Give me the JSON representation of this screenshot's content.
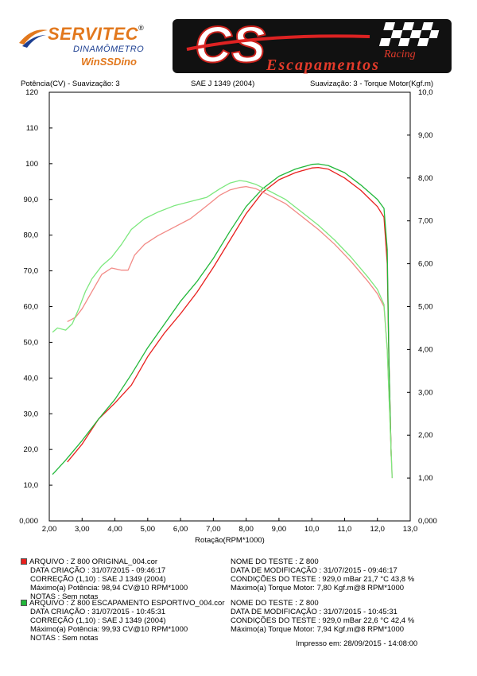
{
  "logos": {
    "servitec": {
      "brand": "SERVITEC",
      "reg": "®",
      "line1": "DINAMÔMETRO",
      "line2": "WinSSDino"
    },
    "cs": {
      "letters": "CS",
      "tagline": "Escapamentos",
      "script": "Racing"
    }
  },
  "header": {
    "left": "Potência(CV) - Suavização: 3",
    "center": "SAE J 1349 (2004)",
    "right": "Suavização: 3 - Torque Motor(Kgf.m)"
  },
  "colors": {
    "run1": "#e8201e",
    "run2": "#22b83a",
    "run1_light": "#f28a86",
    "run2_light": "#7de87e"
  },
  "chart_data": {
    "type": "line",
    "xlabel": "Rotação(RPM*1000)",
    "ylabel": "Potência(CV)",
    "y2label": "Torque Motor(Kgf.m)",
    "xlim": [
      2.0,
      13.0
    ],
    "ylim": [
      0,
      120
    ],
    "y2lim": [
      0,
      10
    ],
    "xticks": [
      "2,00",
      "3,00",
      "4,00",
      "5,00",
      "6,00",
      "7,00",
      "8,00",
      "9,00",
      "10,0",
      "11,0",
      "12,0",
      "13,0"
    ],
    "yticks": [
      "0,000",
      "10,0",
      "20,0",
      "30,0",
      "40,0",
      "50,0",
      "60,0",
      "70,0",
      "80,0",
      "90,0",
      "100",
      "110",
      "120"
    ],
    "y2ticks": [
      "0,000",
      "1,00",
      "2,00",
      "3,00",
      "4,00",
      "5,00",
      "6,00",
      "7,00",
      "8,00",
      "9,00",
      "10,0"
    ],
    "grid": false,
    "series": [
      {
        "name": "Z 800 ORIGINAL_004.cor",
        "quantity": "power",
        "axis": "left",
        "color": "#e8201e",
        "x": [
          2.55,
          3.0,
          3.5,
          4.0,
          4.5,
          5.0,
          5.5,
          6.0,
          6.5,
          7.0,
          7.5,
          8.0,
          8.5,
          9.0,
          9.5,
          10.0,
          10.2,
          10.5,
          11.0,
          11.5,
          12.0,
          12.2,
          12.3,
          12.35,
          12.42
        ],
        "y": [
          16.5,
          21.5,
          28.5,
          33.0,
          38.0,
          46.0,
          52.5,
          58.0,
          64.0,
          71.0,
          78.5,
          86.0,
          92.0,
          95.5,
          97.5,
          98.8,
          98.94,
          98.5,
          96.0,
          92.5,
          88.0,
          85.0,
          72.0,
          45.0,
          18.0
        ]
      },
      {
        "name": "Z 800 ESCAPAMENTO ESPORTIVO_004.cor",
        "quantity": "power",
        "axis": "left",
        "color": "#22b83a",
        "x": [
          2.1,
          2.5,
          3.0,
          3.5,
          4.0,
          4.5,
          5.0,
          5.5,
          6.0,
          6.5,
          7.0,
          7.5,
          8.0,
          8.5,
          9.0,
          9.5,
          10.0,
          10.2,
          10.5,
          11.0,
          11.5,
          12.0,
          12.2,
          12.3,
          12.35,
          12.42
        ],
        "y": [
          13.0,
          17.0,
          22.5,
          28.5,
          34.0,
          41.0,
          48.5,
          55.0,
          61.5,
          67.0,
          73.5,
          81.0,
          88.0,
          93.0,
          96.5,
          98.5,
          99.8,
          99.93,
          99.5,
          97.5,
          94.0,
          90.0,
          87.5,
          76.0,
          45.0,
          18.0
        ]
      },
      {
        "name": "Z 800 ORIGINAL_004.cor",
        "quantity": "torque",
        "axis": "right",
        "color": "#f28a86",
        "x": [
          2.55,
          2.8,
          3.0,
          3.3,
          3.6,
          3.9,
          4.2,
          4.4,
          4.6,
          4.9,
          5.3,
          5.8,
          6.3,
          6.8,
          7.2,
          7.5,
          7.8,
          8.0,
          8.3,
          8.7,
          9.2,
          9.7,
          10.2,
          10.7,
          11.2,
          11.7,
          12.0,
          12.2,
          12.3,
          12.4,
          12.45
        ],
        "y": [
          4.65,
          4.75,
          4.95,
          5.35,
          5.75,
          5.9,
          5.85,
          5.85,
          6.2,
          6.45,
          6.65,
          6.85,
          7.05,
          7.35,
          7.6,
          7.72,
          7.78,
          7.8,
          7.75,
          7.6,
          7.4,
          7.1,
          6.8,
          6.45,
          6.05,
          5.6,
          5.3,
          5.0,
          4.0,
          2.0,
          1.0
        ]
      },
      {
        "name": "Z 800 ESCAPAMENTO ESPORTIVO_004.cor",
        "quantity": "torque",
        "axis": "right",
        "color": "#7de87e",
        "x": [
          2.1,
          2.25,
          2.5,
          2.7,
          2.9,
          3.1,
          3.3,
          3.6,
          3.9,
          4.2,
          4.5,
          4.9,
          5.3,
          5.8,
          6.3,
          6.8,
          7.2,
          7.5,
          7.8,
          8.0,
          8.3,
          8.7,
          9.2,
          9.7,
          10.2,
          10.7,
          11.2,
          11.7,
          12.0,
          12.2,
          12.3,
          12.4,
          12.45
        ],
        "y": [
          4.4,
          4.5,
          4.45,
          4.6,
          4.95,
          5.35,
          5.65,
          5.95,
          6.15,
          6.45,
          6.8,
          7.05,
          7.2,
          7.35,
          7.45,
          7.55,
          7.75,
          7.88,
          7.94,
          7.92,
          7.85,
          7.7,
          7.5,
          7.2,
          6.9,
          6.55,
          6.15,
          5.7,
          5.4,
          5.05,
          4.0,
          2.0,
          1.0
        ]
      }
    ]
  },
  "tests": [
    {
      "color": "#e8201e",
      "arquivo": "ARQUIVO    : Z 800 ORIGINAL_004.cor",
      "data_criacao": "DATA CRIAÇÃO  : 31/07/2015 - 09:46:17",
      "correcao": "CORREÇÃO (1,10)   : SAE J 1349 (2004)",
      "max_potencia": "Máximo(a) Potência:  98,94 CV@10 RPM*1000",
      "notas": "NOTAS  : Sem notas",
      "nome_teste": "NOME DO TESTE    : Z 800",
      "data_modificacao": "DATA DE MODIFICAÇÃO :  31/07/2015 - 09:46:17",
      "condicoes": "CONDIÇÕES DO TESTE :   929,0  mBar  21,7  °C  43,8 %",
      "max_torque": "Máximo(a) Torque Motor:  7,80 Kgf.m@8 RPM*1000"
    },
    {
      "color": "#22b83a",
      "arquivo": "ARQUIVO    : Z 800 ESCAPAMENTO ESPORTIVO_004.cor",
      "data_criacao": "DATA CRIAÇÃO  : 31/07/2015 - 10:45:31",
      "correcao": "CORREÇÃO (1,10)   : SAE J 1349 (2004)",
      "max_potencia": "Máximo(a) Potência:  99,93 CV@10 RPM*1000",
      "notas": "NOTAS  : Sem notas",
      "nome_teste": "NOME DO TESTE    : Z 800",
      "data_modificacao": "DATA DE MODIFICAÇÃO :  31/07/2015 - 10:45:31",
      "condicoes": "CONDIÇÕES DO TESTE :   929,0  mBar  22,6  °C  42,4 %",
      "max_torque": "Máximo(a) Torque Motor:  7,94 Kgf.m@8 RPM*1000"
    }
  ],
  "footer": {
    "printed": "Impresso em: 28/09/2015 - 14:08:00"
  }
}
